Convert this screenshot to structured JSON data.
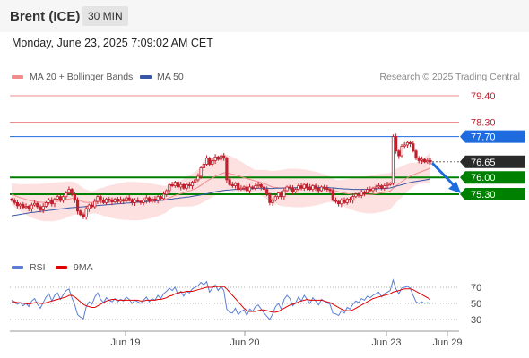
{
  "header": {
    "title": "Brent (ICE)",
    "timeframe": "30 MIN"
  },
  "date_line": "Monday, June 23, 2025 7:09:02 AM CET",
  "legend": {
    "ma_label": "MA 20 + Bollinger Bands",
    "ma50_label": "MA 50",
    "credit": "Research © 2025 Trading Central",
    "rsi_label": "RSI",
    "rsi_ma_label": "9MA"
  },
  "colors": {
    "ma20": "#f28c8c",
    "ma50": "#3a56a6",
    "band_fill": "#fde0e0",
    "candle": "#c0202d",
    "support": "#008000",
    "blue_level": "#1e6be0",
    "last_price": "#2a2a2a",
    "rsi": "#5b7fd6",
    "rsi_ma": "#e00000"
  },
  "chart_data": {
    "type": "candlestick",
    "x_ticks": [
      "Jun 19",
      "Jun 20",
      "Jun 23",
      "Jun 29"
    ],
    "price_range": [
      74.2,
      79.7
    ],
    "last_price": 76.65,
    "levels": [
      {
        "value": 79.4,
        "label": "79.40",
        "style": "resistance",
        "tag": false
      },
      {
        "value": 78.3,
        "label": "78.30",
        "style": "resistance",
        "tag": false
      },
      {
        "value": 77.7,
        "label": "77.70",
        "style": "pivot",
        "tag": true
      },
      {
        "value": 76.65,
        "label": "76.65",
        "style": "last",
        "tag": true
      },
      {
        "value": 76.0,
        "label": "76.00",
        "style": "support",
        "tag": true
      },
      {
        "value": 75.3,
        "label": "75.30",
        "style": "support",
        "tag": true
      }
    ],
    "close": [
      75.05,
      74.95,
      74.82,
      74.88,
      74.75,
      74.8,
      74.7,
      74.85,
      74.92,
      74.78,
      74.65,
      74.8,
      74.95,
      75.05,
      74.9,
      75.1,
      75.2,
      75.05,
      75.2,
      75.35,
      75.5,
      75.3,
      75.05,
      74.6,
      74.45,
      74.35,
      74.7,
      74.85,
      74.78,
      75.0,
      75.2,
      75.05,
      74.95,
      75.1,
      75.05,
      74.98,
      75.1,
      75.0,
      75.08,
      75.02,
      75.15,
      75.08,
      74.95,
      75.05,
      75.0,
      74.95,
      75.05,
      75.15,
      75.0,
      75.1,
      75.05,
      75.2,
      75.12,
      75.3,
      75.45,
      75.7,
      75.65,
      75.8,
      75.6,
      75.7,
      75.55,
      75.7,
      75.65,
      75.8,
      75.9,
      76.05,
      76.4,
      76.55,
      76.8,
      76.55,
      76.7,
      76.85,
      76.75,
      76.9,
      76.8,
      75.9,
      75.7,
      75.65,
      75.75,
      75.5,
      75.55,
      75.6,
      75.45,
      75.6,
      75.55,
      75.65,
      75.7,
      75.6,
      75.5,
      75.3,
      74.95,
      75.05,
      75.2,
      75.35,
      75.2,
      75.45,
      75.6,
      75.55,
      75.4,
      75.5,
      75.65,
      75.55,
      75.7,
      75.6,
      75.5,
      75.65,
      75.55,
      75.45,
      75.6,
      75.55,
      75.5,
      75.45,
      75.05,
      75.0,
      74.9,
      75.05,
      74.95,
      75.1,
      75.05,
      75.2,
      75.3,
      75.25,
      75.4,
      75.35,
      75.5,
      75.45,
      75.55,
      75.6,
      75.65,
      75.55,
      75.65,
      75.7,
      75.75,
      77.7,
      77.1,
      76.9,
      77.3,
      77.35,
      77.45,
      77.4,
      77.1,
      76.8,
      76.7,
      76.75,
      76.65,
      76.7,
      76.65
    ],
    "ma20": [
      75.3,
      75.25,
      75.2,
      75.15,
      75.12,
      75.08,
      75.05,
      75.02,
      75.0,
      74.98,
      74.97,
      74.96,
      74.96,
      74.97,
      74.97,
      74.98,
      75.0,
      75.02,
      75.04,
      75.07,
      75.1,
      75.12,
      75.12,
      75.08,
      75.03,
      74.98,
      74.96,
      74.96,
      74.96,
      74.98,
      75.0,
      75.0,
      74.99,
      75.0,
      75.0,
      75.0,
      75.0,
      75.0,
      75.01,
      75.01,
      75.02,
      75.02,
      75.01,
      75.01,
      75.01,
      75.01,
      75.01,
      75.02,
      75.02,
      75.03,
      75.03,
      75.04,
      75.05,
      75.07,
      75.1,
      75.15,
      75.2,
      75.25,
      75.29,
      75.33,
      75.36,
      75.4,
      75.44,
      75.48,
      75.53,
      75.59,
      75.67,
      75.75,
      75.84,
      75.91,
      75.98,
      76.05,
      76.1,
      76.15,
      76.19,
      76.18,
      76.16,
      76.13,
      76.11,
      76.07,
      76.03,
      75.99,
      75.95,
      75.92,
      75.88,
      75.85,
      75.82,
      75.78,
      75.74,
      75.7,
      75.64,
      75.6,
      75.58,
      75.57,
      75.56,
      75.56,
      75.57,
      75.57,
      75.56,
      75.56,
      75.56,
      75.55,
      75.55,
      75.55,
      75.54,
      75.54,
      75.54,
      75.53,
      75.53,
      75.53,
      75.52,
      75.51,
      75.48,
      75.44,
      75.4,
      75.38,
      75.35,
      75.33,
      75.31,
      75.3,
      75.29,
      75.28,
      75.28,
      75.28,
      75.28,
      75.29,
      75.3,
      75.32,
      75.34,
      75.36,
      75.38,
      75.4,
      75.43,
      75.55,
      75.65,
      75.73,
      75.82,
      75.9,
      75.99,
      76.06,
      76.11,
      76.15,
      76.2,
      76.25,
      76.29,
      76.34,
      76.38
    ],
    "ma50": [
      74.4,
      74.42,
      74.44,
      74.46,
      74.48,
      74.5,
      74.52,
      74.54,
      74.55,
      74.57,
      74.58,
      74.6,
      74.61,
      74.63,
      74.64,
      74.66,
      74.67,
      74.69,
      74.7,
      74.71,
      74.73,
      74.74,
      74.75,
      74.76,
      74.77,
      74.78,
      74.79,
      74.8,
      74.81,
      74.82,
      74.83,
      74.84,
      74.85,
      74.86,
      74.87,
      74.88,
      74.89,
      74.9,
      74.91,
      74.92,
      74.93,
      74.94,
      74.95,
      74.96,
      74.97,
      74.98,
      74.98,
      74.99,
      75.0,
      75.01,
      75.02,
      75.03,
      75.04,
      75.05,
      75.07,
      75.09,
      75.1,
      75.12,
      75.13,
      75.15,
      75.16,
      75.18,
      75.19,
      75.21,
      75.23,
      75.25,
      75.27,
      75.3,
      75.32,
      75.35,
      75.37,
      75.4,
      75.42,
      75.44,
      75.46,
      75.47,
      75.48,
      75.49,
      75.5,
      75.5,
      75.51,
      75.52,
      75.52,
      75.53,
      75.53,
      75.54,
      75.55,
      75.55,
      75.55,
      75.55,
      75.54,
      75.54,
      75.55,
      75.55,
      75.55,
      75.56,
      75.56,
      75.57,
      75.57,
      75.57,
      75.58,
      75.58,
      75.58,
      75.58,
      75.58,
      75.58,
      75.58,
      75.58,
      75.58,
      75.58,
      75.58,
      75.57,
      75.56,
      75.55,
      75.54,
      75.53,
      75.52,
      75.52,
      75.51,
      75.5,
      75.5,
      75.5,
      75.5,
      75.5,
      75.5,
      75.5,
      75.51,
      75.52,
      75.53,
      75.53,
      75.54,
      75.55,
      75.56,
      75.6,
      75.63,
      75.66,
      75.69,
      75.72,
      75.76,
      75.79,
      75.81,
      75.83,
      75.85,
      75.87,
      75.89,
      75.91,
      75.93
    ],
    "rsi": {
      "ticks": [
        30,
        50,
        70
      ],
      "range": [
        20,
        80
      ],
      "rsi": [
        54,
        52,
        49,
        51,
        47,
        50,
        46,
        53,
        56,
        49,
        44,
        51,
        58,
        62,
        53,
        60,
        63,
        55,
        61,
        66,
        68,
        57,
        48,
        36,
        33,
        31,
        46,
        52,
        49,
        58,
        63,
        55,
        51,
        57,
        54,
        52,
        56,
        52,
        55,
        53,
        58,
        55,
        50,
        54,
        52,
        50,
        54,
        58,
        52,
        56,
        54,
        60,
        56,
        62,
        65,
        69,
        66,
        70,
        61,
        65,
        59,
        65,
        63,
        68,
        70,
        72,
        76,
        73,
        77,
        64,
        69,
        73,
        66,
        71,
        66,
        43,
        39,
        38,
        44,
        36,
        40,
        42,
        35,
        43,
        40,
        46,
        48,
        43,
        38,
        34,
        30,
        37,
        46,
        50,
        43,
        55,
        60,
        56,
        47,
        51,
        58,
        53,
        60,
        55,
        50,
        57,
        53,
        48,
        55,
        53,
        51,
        49,
        38,
        37,
        35,
        41,
        38,
        45,
        43,
        49,
        53,
        51,
        56,
        54,
        59,
        57,
        60,
        62,
        64,
        58,
        62,
        64,
        66,
        79,
        68,
        62,
        69,
        70,
        71,
        69,
        60,
        52,
        50,
        52,
        50,
        51,
        50
      ],
      "ma9": [
        52,
        52,
        51,
        51,
        50,
        50,
        49,
        50,
        51,
        51,
        50,
        50,
        51,
        52,
        53,
        54,
        55,
        56,
        57,
        58,
        60,
        60,
        58,
        55,
        52,
        49,
        47,
        46,
        45,
        45,
        47,
        49,
        51,
        53,
        54,
        55,
        55,
        54,
        54,
        54,
        54,
        54,
        54,
        54,
        54,
        53,
        53,
        54,
        54,
        54,
        54,
        55,
        55,
        56,
        57,
        59,
        60,
        62,
        63,
        64,
        64,
        65,
        65,
        65,
        66,
        67,
        68,
        69,
        70,
        70,
        70,
        71,
        71,
        71,
        71,
        68,
        64,
        60,
        56,
        52,
        48,
        44,
        41,
        40,
        40,
        40,
        41,
        42,
        42,
        41,
        40,
        39,
        39,
        40,
        42,
        44,
        46,
        48,
        49,
        50,
        52,
        53,
        54,
        55,
        54,
        54,
        54,
        54,
        54,
        53,
        52,
        51,
        49,
        47,
        45,
        43,
        41,
        41,
        41,
        42,
        44,
        46,
        48,
        50,
        52,
        54,
        56,
        57,
        58,
        59,
        60,
        61,
        62,
        64,
        65,
        66,
        67,
        68,
        68,
        68,
        67,
        65,
        63,
        61,
        59,
        57,
        55
      ]
    }
  }
}
